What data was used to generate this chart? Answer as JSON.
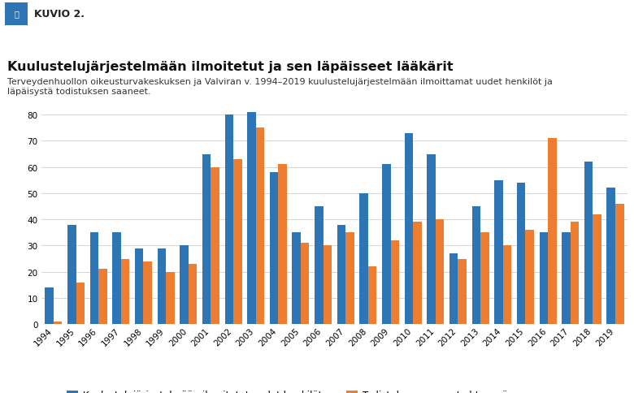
{
  "title": "Kuulustelujärjestelmään ilmoitetut ja sen läpäisseet lääkärit",
  "subtitle_line1": "Terveydenhuollon oikeusturvakeskuksen ja Valviran v. 1994–2019 kuulustelujärjestelmään ilmoittamat uudet henkilöt ja",
  "subtitle_line2": "läpäisystä todistuksen saaneet.",
  "header_label": "KUVIO 2.",
  "years": [
    1994,
    1995,
    1996,
    1997,
    1998,
    1999,
    2000,
    2001,
    2002,
    2003,
    2004,
    2005,
    2006,
    2007,
    2008,
    2009,
    2010,
    2011,
    2012,
    2013,
    2014,
    2015,
    2016,
    2017,
    2018,
    2019
  ],
  "blue_values": [
    14,
    38,
    35,
    35,
    29,
    29,
    30,
    65,
    80,
    81,
    58,
    35,
    45,
    38,
    50,
    61,
    73,
    65,
    27,
    45,
    55,
    54,
    35,
    35,
    62,
    52
  ],
  "orange_values": [
    1,
    16,
    21,
    25,
    24,
    20,
    23,
    60,
    63,
    75,
    61,
    31,
    30,
    35,
    22,
    32,
    39,
    40,
    25,
    35,
    30,
    36,
    71,
    39,
    42,
    46
  ],
  "blue_color": "#2E75B6",
  "orange_color": "#ED7D31",
  "ylim": [
    0,
    85
  ],
  "yticks": [
    0,
    10,
    20,
    30,
    40,
    50,
    60,
    70,
    80
  ],
  "legend_blue": "Kuulustelujärjestelmään ilmoitetut uudet henkilöt",
  "legend_orange": "Todistuksen saaneet yhteensä",
  "bg_color": "#FFFFFF",
  "header_bg": "#E8E8E8",
  "grid_color": "#D0D0D0",
  "bar_width": 0.38,
  "title_fontsize": 11.5,
  "subtitle_fontsize": 8,
  "tick_fontsize": 7.5,
  "legend_fontsize": 8.5,
  "header_fontsize": 9
}
